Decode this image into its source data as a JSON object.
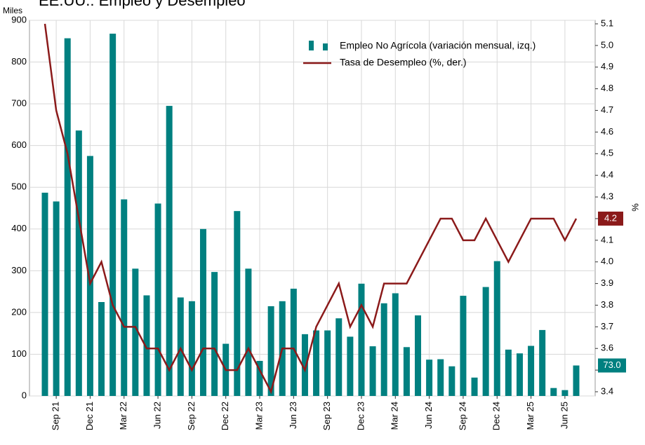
{
  "chart_data": {
    "type": "bar_line",
    "title": "EE.UU.: Empleo y Desempleo",
    "ylabel": "Miles",
    "y2label": "%",
    "categories": [
      null,
      "Sep 21",
      null,
      null,
      "Dec 21",
      null,
      null,
      "Mar 22",
      null,
      null,
      "Jun 22",
      null,
      null,
      "Sep 22",
      null,
      null,
      "Dec 22",
      null,
      null,
      "Mar 23",
      null,
      null,
      "Jun 23",
      null,
      null,
      "Sep 23",
      null,
      null,
      "Dec 23",
      null,
      null,
      "Mar 24",
      null,
      null,
      "Jun 24",
      null,
      null,
      "Sep 24",
      null,
      null,
      "Dec 24",
      null,
      null,
      "Mar 25",
      null,
      null,
      "Jun 25",
      null
    ],
    "series": [
      {
        "name": "Empleo No Agrícola (variación mensual, izq.)",
        "color": "#008080",
        "axis": "y",
        "values": [
          487,
          466,
          857,
          636,
          575,
          225,
          868,
          471,
          305,
          241,
          461,
          695,
          236,
          227,
          400,
          297,
          125,
          443,
          305,
          84,
          215,
          227,
          257,
          148,
          157,
          157,
          186,
          142,
          269,
          119,
          222,
          246,
          117,
          193,
          87,
          88,
          71,
          240,
          44,
          261,
          323,
          111,
          102,
          120,
          158,
          19,
          14,
          73
        ],
        "last_label": "73.0"
      },
      {
        "name": "Tasa de Desempleo (%, der.)",
        "color": "#8b1a1a",
        "axis": "y2",
        "values": [
          5.1,
          4.7,
          4.5,
          4.2,
          3.9,
          4.0,
          3.8,
          3.7,
          3.7,
          3.6,
          3.6,
          3.5,
          3.6,
          3.5,
          3.6,
          3.6,
          3.5,
          3.5,
          3.6,
          3.5,
          3.4,
          3.6,
          3.6,
          3.5,
          3.7,
          3.8,
          3.9,
          3.7,
          3.8,
          3.7,
          3.9,
          3.9,
          3.9,
          4.0,
          4.1,
          4.2,
          4.2,
          4.1,
          4.1,
          4.2,
          4.1,
          4.0,
          4.1,
          4.2,
          4.2,
          4.2,
          4.1,
          4.2
        ],
        "last_label": "4.2"
      }
    ],
    "ylim": [
      0,
      900
    ],
    "yticks": [
      0,
      100,
      200,
      300,
      400,
      500,
      600,
      700,
      800,
      900
    ],
    "y2lim": [
      3.4,
      5.1
    ],
    "y2ticks": [
      3.4,
      3.5,
      3.6,
      3.7,
      3.8,
      3.9,
      {
        "value": 4,
        "label": "4.0"
      },
      4.1,
      4.2,
      4.3,
      4.4,
      4.5,
      4.6,
      4.7,
      4.8,
      4.9,
      {
        "value": 5,
        "label": "5.0"
      },
      5.1
    ],
    "grid": true,
    "legend": "upper right"
  }
}
